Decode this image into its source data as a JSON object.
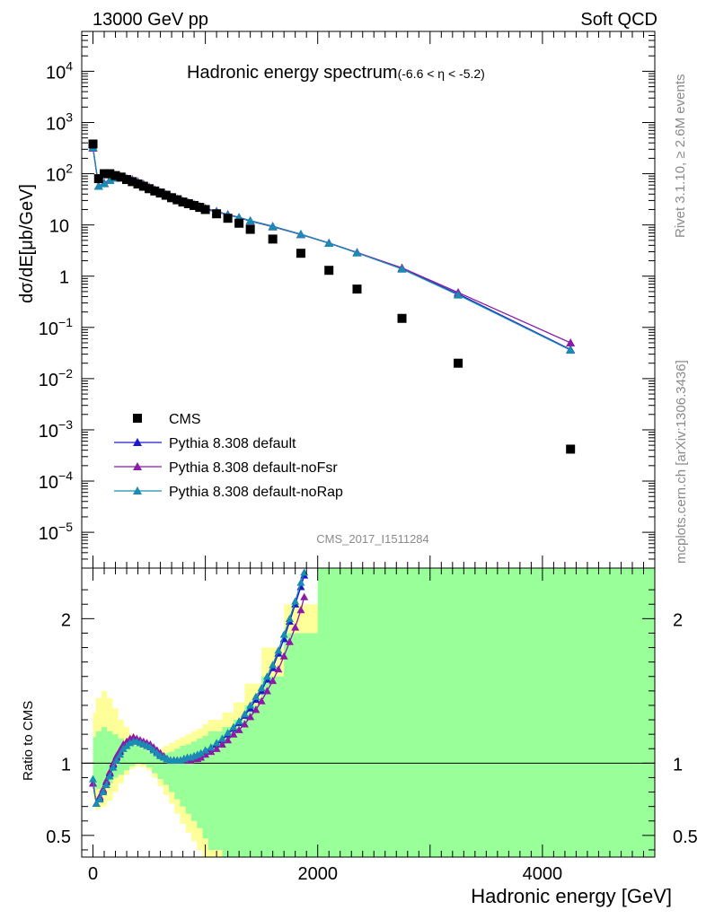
{
  "header": {
    "left": "13000 GeV pp",
    "right": "Soft QCD"
  },
  "main_title": "Hadronic energy spectrum",
  "main_title_range": "(-6.6 < η < -5.2)",
  "watermark": "CMS_2017_I1511284",
  "side_top": "Rivet 3.1.10, ≥ 2.6M events",
  "side_bottom": "mcplots.cern.ch [arXiv:1306.3436]",
  "colors": {
    "cms": "#000000",
    "default": "#1a1acc",
    "noFsr": "#8c1aa6",
    "noRap": "#1a8cb3",
    "band_inner": "#99ff99",
    "band_outer": "#ffff99"
  },
  "chart_data": [
    {
      "type": "line",
      "panel": "main",
      "title": "Hadronic energy spectrum(-6.6 < η < -5.2)",
      "ylabel": "dσ/dE[μb/GeV]",
      "y_scale": "log",
      "xlim": [
        -100,
        5000
      ],
      "ylim": [
        2e-06,
        60000
      ],
      "y_ticks": [
        {
          "v": 10000,
          "label": "10",
          "exp": "4"
        },
        {
          "v": 1000,
          "label": "10",
          "exp": "3"
        },
        {
          "v": 100,
          "label": "10",
          "exp": "2"
        },
        {
          "v": 10,
          "label": "10",
          "exp": ""
        },
        {
          "v": 1,
          "label": "1",
          "exp": ""
        },
        {
          "v": 0.1,
          "label": "10",
          "exp": "−1"
        },
        {
          "v": 0.01,
          "label": "10",
          "exp": "−2"
        },
        {
          "v": 0.001,
          "label": "10",
          "exp": "−3"
        },
        {
          "v": 0.0001,
          "label": "10",
          "exp": "−4"
        },
        {
          "v": 1e-05,
          "label": "10",
          "exp": "−5"
        }
      ],
      "legend_position": "bottom-left",
      "series": [
        {
          "name": "CMS",
          "key": "cms",
          "style": "marker-square",
          "x": [
            0,
            50,
            100,
            150,
            200,
            250,
            300,
            350,
            400,
            450,
            500,
            550,
            600,
            650,
            700,
            750,
            800,
            850,
            900,
            950,
            1000,
            1100,
            1200,
            1300,
            1400,
            1600,
            1850,
            2100,
            2350,
            2750,
            3250,
            4250
          ],
          "y": [
            380,
            80,
            100,
            100,
            92,
            86,
            77,
            70,
            63,
            57,
            51,
            46,
            42,
            38,
            34,
            31,
            28,
            26,
            24,
            22,
            20,
            16.5,
            13.5,
            10.8,
            8.2,
            5.3,
            2.8,
            1.3,
            0.56,
            0.15,
            0.02,
            0.00042
          ]
        },
        {
          "name": "Pythia 8.308 default",
          "key": "default",
          "style": "line-triangle",
          "x": [
            0,
            50,
            100,
            150,
            200,
            250,
            300,
            350,
            400,
            450,
            500,
            550,
            600,
            650,
            700,
            750,
            800,
            850,
            900,
            950,
            1000,
            1100,
            1200,
            1300,
            1400,
            1600,
            1850,
            2100,
            2350,
            2750,
            3250,
            4250
          ],
          "y": [
            320,
            57,
            65,
            75,
            83,
            84,
            80,
            75,
            68,
            62,
            54,
            48,
            43,
            39,
            35,
            32,
            29,
            27,
            25,
            23,
            21,
            18.4,
            16.0,
            14.0,
            12.1,
            9.4,
            6.6,
            4.45,
            2.9,
            1.4,
            0.45,
            0.037
          ]
        },
        {
          "name": "Pythia 8.308 default-noFsr",
          "key": "noFsr",
          "style": "line-triangle",
          "x": [
            0,
            50,
            100,
            150,
            200,
            250,
            300,
            350,
            400,
            450,
            500,
            550,
            600,
            650,
            700,
            750,
            800,
            850,
            900,
            950,
            1000,
            1100,
            1200,
            1300,
            1400,
            1600,
            1850,
            2100,
            2350,
            2750,
            3250,
            4250
          ],
          "y": [
            320,
            57,
            66,
            76,
            85,
            86,
            82,
            77,
            70,
            63,
            55,
            49,
            43,
            39,
            35,
            32,
            29,
            27,
            25,
            23,
            21,
            18.3,
            15.8,
            13.8,
            11.9,
            9.2,
            6.5,
            4.4,
            2.9,
            1.45,
            0.48,
            0.05
          ]
        },
        {
          "name": "Pythia 8.308 default-noRap",
          "key": "noRap",
          "style": "line-triangle",
          "x": [
            0,
            50,
            100,
            150,
            200,
            250,
            300,
            350,
            400,
            450,
            500,
            550,
            600,
            650,
            700,
            750,
            800,
            850,
            900,
            950,
            1000,
            1100,
            1200,
            1300,
            1400,
            1600,
            1850,
            2100,
            2350,
            2750,
            3250,
            4250
          ],
          "y": [
            330,
            57,
            64,
            74,
            82,
            83,
            79,
            74,
            67,
            61,
            53,
            47,
            42,
            38,
            34,
            31,
            28,
            26,
            24,
            22,
            20,
            18.0,
            15.7,
            13.8,
            12.0,
            9.3,
            6.6,
            4.4,
            2.85,
            1.38,
            0.43,
            0.036
          ]
        }
      ]
    },
    {
      "type": "line",
      "panel": "ratio",
      "xlabel": "Hadronic energy [GeV]",
      "ylabel": "Ratio to CMS",
      "xlim": [
        -100,
        5000
      ],
      "ylim": [
        0.35,
        2.35
      ],
      "x_ticks": [
        0,
        2000,
        4000
      ],
      "y_ticks": [
        0.5,
        1,
        2
      ],
      "reference_line": 1,
      "band": {
        "x_edges": [
          0,
          25,
          75,
          125,
          175,
          225,
          275,
          325,
          375,
          425,
          475,
          525,
          575,
          625,
          675,
          725,
          775,
          825,
          875,
          925,
          975,
          1025,
          1150,
          1250,
          1350,
          1500,
          1700,
          2000,
          2200,
          2500,
          3000,
          3500,
          5000
        ],
        "outer_lo": [
          0.75,
          0.68,
          0.7,
          0.74,
          0.8,
          0.86,
          0.92,
          0.96,
          0.98,
          0.97,
          0.95,
          0.9,
          0.84,
          0.78,
          0.72,
          0.65,
          0.58,
          0.52,
          0.46,
          0.4,
          0.32,
          0.22,
          0.15,
          0.15,
          0.15,
          0.15,
          0.15,
          0.15,
          0.15,
          0.15,
          0.15,
          0.15
        ],
        "outer_hi": [
          1.35,
          1.45,
          1.5,
          1.45,
          1.38,
          1.3,
          1.25,
          1.2,
          1.17,
          1.14,
          1.12,
          1.1,
          1.1,
          1.12,
          1.14,
          1.16,
          1.18,
          1.2,
          1.22,
          1.24,
          1.27,
          1.3,
          1.35,
          1.42,
          1.55,
          1.8,
          2.1,
          2.4,
          2.4,
          2.4,
          2.4,
          2.4
        ],
        "inner_lo": [
          0.85,
          0.82,
          0.84,
          0.86,
          0.9,
          0.92,
          0.95,
          0.98,
          1.0,
          0.99,
          0.97,
          0.93,
          0.89,
          0.85,
          0.8,
          0.75,
          0.7,
          0.65,
          0.6,
          0.55,
          0.48,
          0.4,
          0.3,
          0.2,
          0.15,
          0.15,
          0.15,
          0.15,
          0.15,
          0.15,
          0.15,
          0.15
        ],
        "inner_hi": [
          1.18,
          1.22,
          1.25,
          1.22,
          1.2,
          1.17,
          1.15,
          1.14,
          1.12,
          1.1,
          1.08,
          1.06,
          1.06,
          1.07,
          1.08,
          1.1,
          1.12,
          1.13,
          1.15,
          1.17,
          1.19,
          1.22,
          1.25,
          1.3,
          1.4,
          1.6,
          1.9,
          2.4,
          2.4,
          2.4,
          2.4,
          2.4
        ]
      },
      "series": [
        {
          "name": "Pythia 8.308 default",
          "key": "default",
          "x": [
            0,
            30,
            60,
            90,
            120,
            150,
            180,
            210,
            240,
            270,
            300,
            330,
            360,
            390,
            420,
            450,
            480,
            510,
            540,
            570,
            600,
            630,
            660,
            690,
            720,
            750,
            780,
            810,
            840,
            870,
            900,
            930,
            960,
            1000,
            1050,
            1100,
            1150,
            1200,
            1250,
            1300,
            1350,
            1400,
            1450,
            1500,
            1550,
            1600,
            1650,
            1700,
            1750,
            1800,
            1850,
            1880
          ],
          "y": [
            0.86,
            0.72,
            0.76,
            0.81,
            0.87,
            0.93,
            0.99,
            1.04,
            1.08,
            1.12,
            1.14,
            1.16,
            1.16,
            1.16,
            1.15,
            1.14,
            1.13,
            1.12,
            1.1,
            1.08,
            1.06,
            1.04,
            1.03,
            1.02,
            1.02,
            1.02,
            1.02,
            1.03,
            1.03,
            1.04,
            1.04,
            1.05,
            1.06,
            1.08,
            1.1,
            1.13,
            1.16,
            1.2,
            1.24,
            1.28,
            1.33,
            1.38,
            1.44,
            1.5,
            1.58,
            1.66,
            1.76,
            1.86,
            1.98,
            2.1,
            2.22,
            2.3
          ]
        },
        {
          "name": "Pythia 8.308 default-noFsr",
          "key": "noFsr",
          "x": [
            0,
            30,
            60,
            90,
            120,
            150,
            180,
            210,
            240,
            270,
            300,
            330,
            360,
            390,
            420,
            450,
            480,
            510,
            540,
            570,
            600,
            630,
            660,
            690,
            720,
            750,
            780,
            810,
            840,
            870,
            900,
            930,
            960,
            1000,
            1050,
            1100,
            1150,
            1200,
            1250,
            1300,
            1350,
            1400,
            1450,
            1500,
            1550,
            1600,
            1650,
            1700,
            1750,
            1800,
            1850,
            1880
          ],
          "y": [
            0.86,
            0.72,
            0.77,
            0.82,
            0.88,
            0.94,
            1.0,
            1.05,
            1.09,
            1.13,
            1.15,
            1.17,
            1.18,
            1.17,
            1.16,
            1.15,
            1.14,
            1.13,
            1.11,
            1.09,
            1.07,
            1.05,
            1.03,
            1.02,
            1.02,
            1.02,
            1.02,
            1.02,
            1.02,
            1.02,
            1.03,
            1.03,
            1.04,
            1.06,
            1.08,
            1.1,
            1.13,
            1.16,
            1.2,
            1.23,
            1.27,
            1.32,
            1.37,
            1.43,
            1.5,
            1.57,
            1.65,
            1.74,
            1.84,
            1.94,
            2.06,
            2.15
          ]
        },
        {
          "name": "Pythia 8.308 default-noRap",
          "key": "noRap",
          "x": [
            0,
            30,
            60,
            90,
            120,
            150,
            180,
            210,
            240,
            270,
            300,
            330,
            360,
            390,
            420,
            450,
            480,
            510,
            540,
            570,
            600,
            630,
            660,
            690,
            720,
            750,
            780,
            810,
            840,
            870,
            900,
            930,
            960,
            1000,
            1050,
            1100,
            1150,
            1200,
            1250,
            1300,
            1350,
            1400,
            1450,
            1500,
            1550,
            1600,
            1650,
            1700,
            1750,
            1800,
            1850,
            1880
          ],
          "y": [
            0.89,
            0.72,
            0.75,
            0.8,
            0.85,
            0.91,
            0.97,
            1.02,
            1.06,
            1.1,
            1.12,
            1.14,
            1.15,
            1.15,
            1.14,
            1.13,
            1.12,
            1.11,
            1.09,
            1.07,
            1.05,
            1.04,
            1.03,
            1.02,
            1.02,
            1.02,
            1.02,
            1.03,
            1.04,
            1.04,
            1.05,
            1.06,
            1.07,
            1.09,
            1.11,
            1.14,
            1.17,
            1.21,
            1.25,
            1.29,
            1.34,
            1.4,
            1.46,
            1.52,
            1.6,
            1.68,
            1.78,
            1.89,
            2.0,
            2.12,
            2.25,
            2.32
          ]
        }
      ]
    }
  ]
}
